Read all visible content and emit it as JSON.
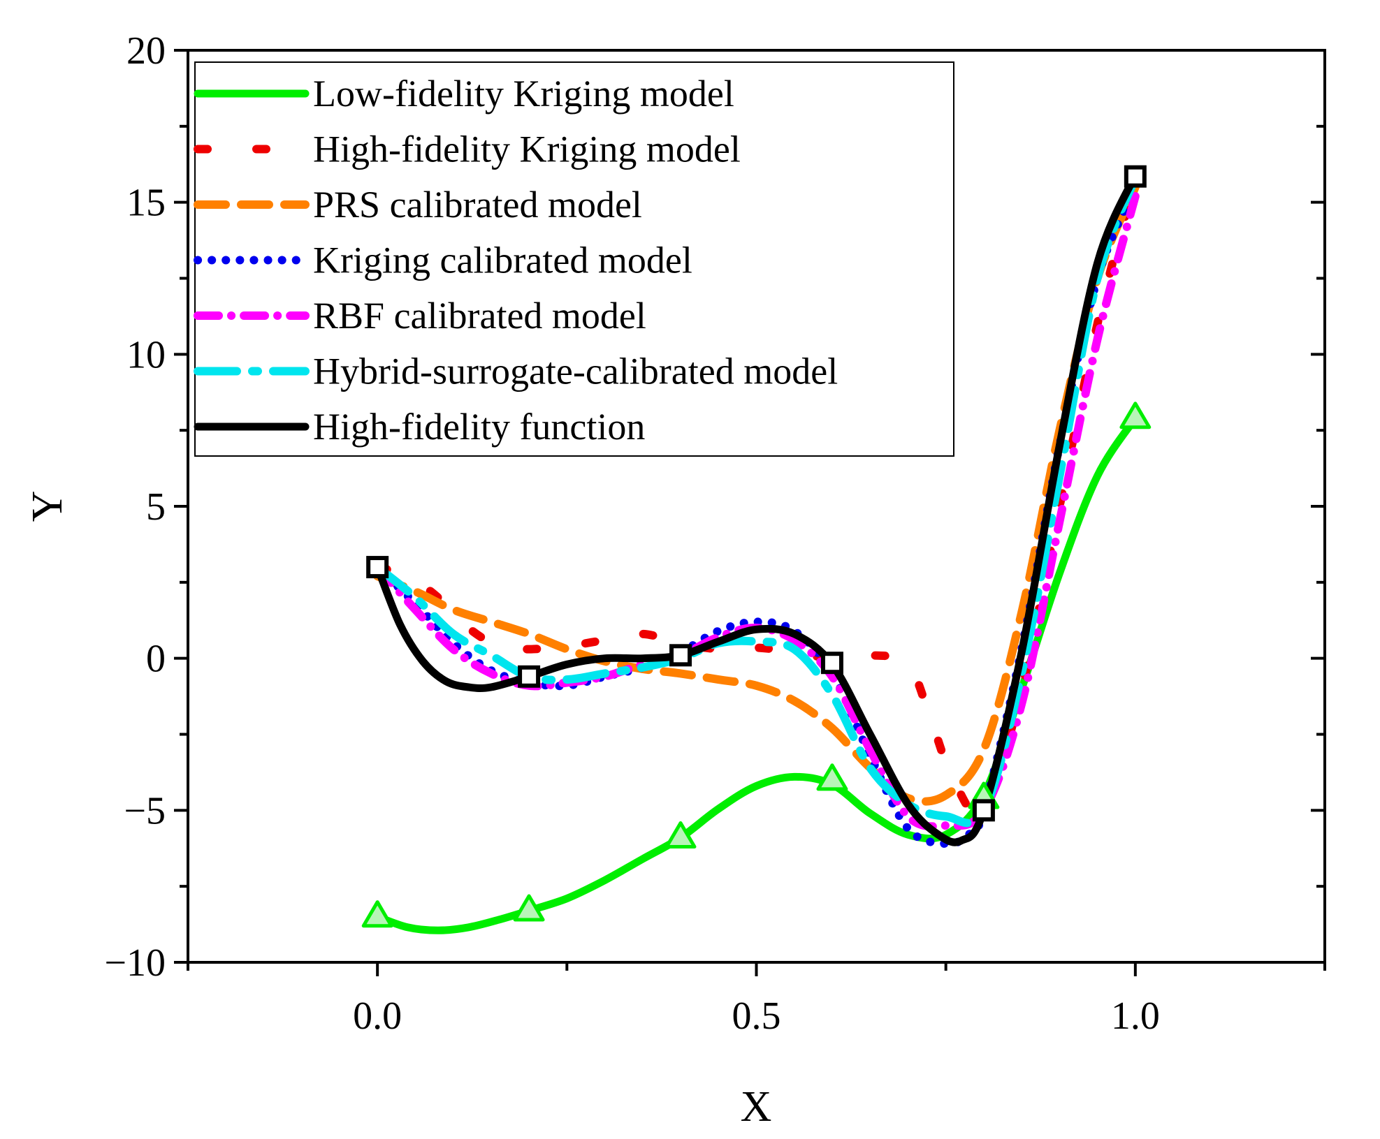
{
  "chart_data": {
    "type": "line",
    "title": "",
    "xlabel": "X",
    "ylabel": "Y",
    "xlim": [
      -0.25,
      1.25
    ],
    "ylim": [
      -10,
      20
    ],
    "x_ticks": [
      0.0,
      0.5,
      1.0
    ],
    "x_tick_labels": [
      "0.0",
      "0.5",
      "1.0"
    ],
    "y_ticks": [
      -10,
      -5,
      0,
      5,
      10,
      15,
      20
    ],
    "y_tick_labels": [
      "−10",
      "−5",
      "0",
      "5",
      "10",
      "15",
      "20"
    ],
    "grid": false,
    "legend_position": "top-left",
    "series": [
      {
        "name": "Low-fidelity Kriging model",
        "color": "#00ee00",
        "style": "solid",
        "x": [
          0.0,
          0.04,
          0.08,
          0.12,
          0.16,
          0.2,
          0.25,
          0.3,
          0.35,
          0.4,
          0.45,
          0.5,
          0.55,
          0.6,
          0.65,
          0.7,
          0.75,
          0.8,
          0.85,
          0.9,
          0.95,
          1.0
        ],
        "y": [
          -8.5,
          -8.85,
          -8.95,
          -8.85,
          -8.6,
          -8.3,
          -7.9,
          -7.3,
          -6.6,
          -5.9,
          -4.95,
          -4.2,
          -3.9,
          -4.15,
          -5.1,
          -5.8,
          -5.8,
          -4.5,
          -1.0,
          2.8,
          6.0,
          7.9
        ]
      },
      {
        "name": "High-fidelity Kriging model",
        "color": "#ee0000",
        "style": "dash-sparse",
        "x": [
          0.0,
          0.04,
          0.08,
          0.12,
          0.16,
          0.2,
          0.25,
          0.3,
          0.35,
          0.4,
          0.45,
          0.5,
          0.55,
          0.6,
          0.65,
          0.7,
          0.73,
          0.76,
          0.8,
          0.85,
          0.9,
          0.95,
          1.0
        ],
        "y": [
          3.0,
          2.7,
          2.0,
          1.0,
          0.4,
          0.3,
          0.4,
          0.6,
          0.8,
          0.5,
          0.3,
          0.35,
          0.2,
          0.0,
          0.1,
          -0.2,
          -2.0,
          -4.0,
          -5.0,
          -1.0,
          5.0,
          11.0,
          15.8
        ]
      },
      {
        "name": "PRS calibrated model",
        "color": "#ff8000",
        "style": "dash",
        "x": [
          0.0,
          0.05,
          0.1,
          0.15,
          0.2,
          0.25,
          0.3,
          0.35,
          0.4,
          0.45,
          0.5,
          0.55,
          0.6,
          0.65,
          0.7,
          0.75,
          0.8,
          0.85,
          0.9,
          0.95,
          1.0
        ],
        "y": [
          2.7,
          2.2,
          1.6,
          1.2,
          0.8,
          0.3,
          -0.1,
          -0.35,
          -0.5,
          -0.7,
          -0.9,
          -1.4,
          -2.3,
          -3.6,
          -4.6,
          -4.5,
          -3.0,
          1.5,
          7.5,
          12.5,
          15.5
        ]
      },
      {
        "name": "Kriging calibrated model",
        "color": "#0000ee",
        "style": "dot",
        "x": [
          0.0,
          0.05,
          0.1,
          0.15,
          0.2,
          0.25,
          0.3,
          0.35,
          0.4,
          0.45,
          0.5,
          0.55,
          0.6,
          0.65,
          0.7,
          0.75,
          0.78,
          0.8,
          0.85,
          0.9,
          0.95,
          1.0
        ],
        "y": [
          3.0,
          1.8,
          0.5,
          -0.4,
          -0.8,
          -0.9,
          -0.6,
          -0.3,
          0.2,
          0.9,
          1.2,
          0.9,
          -0.5,
          -3.2,
          -5.6,
          -6.1,
          -5.8,
          -5.0,
          0.3,
          7.0,
          12.5,
          15.5
        ]
      },
      {
        "name": "RBF calibrated model",
        "color": "#ff00ff",
        "style": "dashdot",
        "x": [
          0.0,
          0.05,
          0.1,
          0.15,
          0.2,
          0.25,
          0.3,
          0.35,
          0.4,
          0.45,
          0.5,
          0.55,
          0.6,
          0.65,
          0.7,
          0.75,
          0.8,
          0.85,
          0.9,
          0.95,
          1.0
        ],
        "y": [
          3.0,
          1.6,
          0.3,
          -0.5,
          -0.9,
          -0.8,
          -0.6,
          -0.2,
          0.1,
          0.7,
          1.0,
          0.6,
          -0.6,
          -3.0,
          -5.2,
          -5.5,
          -5.0,
          -1.5,
          4.5,
          10.5,
          15.2
        ]
      },
      {
        "name": "Hybrid-surrogate-calibrated model",
        "color": "#00e5ee",
        "style": "longdash",
        "x": [
          0.0,
          0.05,
          0.1,
          0.15,
          0.2,
          0.25,
          0.3,
          0.35,
          0.4,
          0.45,
          0.5,
          0.55,
          0.6,
          0.65,
          0.7,
          0.75,
          0.8,
          0.85,
          0.9,
          0.95,
          1.0
        ],
        "y": [
          3.0,
          2.0,
          0.8,
          0.1,
          -0.6,
          -0.7,
          -0.5,
          -0.3,
          0.0,
          0.5,
          0.55,
          0.3,
          -1.2,
          -3.6,
          -4.8,
          -5.2,
          -5.0,
          -0.5,
          6.0,
          12.5,
          15.8
        ]
      },
      {
        "name": "High-fidelity function",
        "color": "#000000",
        "style": "solid",
        "x": [
          0.0,
          0.03,
          0.06,
          0.09,
          0.12,
          0.15,
          0.2,
          0.25,
          0.3,
          0.35,
          0.4,
          0.45,
          0.5,
          0.55,
          0.6,
          0.65,
          0.7,
          0.74,
          0.77,
          0.8,
          0.85,
          0.9,
          0.95,
          1.0
        ],
        "y": [
          3.0,
          1.1,
          -0.1,
          -0.75,
          -0.95,
          -0.95,
          -0.6,
          -0.2,
          0.0,
          0.0,
          0.1,
          0.55,
          0.95,
          0.8,
          -0.2,
          -2.5,
          -4.8,
          -5.8,
          -6.0,
          -5.0,
          0.2,
          7.0,
          13.0,
          15.9
        ]
      }
    ],
    "markers": [
      {
        "series": "Low-fidelity Kriging model",
        "shape": "triangle",
        "color": "#00ee00",
        "x": [
          0.0,
          0.2,
          0.4,
          0.6,
          0.8,
          1.0
        ],
        "y": [
          -8.5,
          -8.3,
          -5.9,
          -4.0,
          -4.6,
          7.9
        ]
      },
      {
        "series": "High-fidelity function",
        "shape": "square",
        "color": "#000000",
        "x": [
          0.0,
          0.2,
          0.4,
          0.6,
          0.8,
          1.0
        ],
        "y": [
          3.0,
          -0.6,
          0.1,
          -0.15,
          -5.0,
          15.85
        ]
      }
    ]
  }
}
